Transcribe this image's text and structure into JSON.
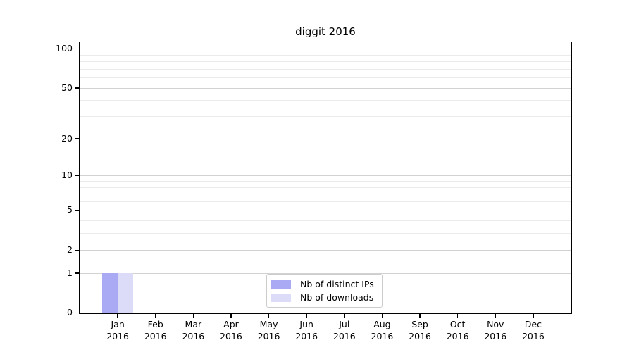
{
  "title": "diggit 2016",
  "chart_data": {
    "type": "bar",
    "title": "diggit 2016",
    "x_ticks": [
      {
        "month": "Jan",
        "year": "2016"
      },
      {
        "month": "Feb",
        "year": "2016"
      },
      {
        "month": "Mar",
        "year": "2016"
      },
      {
        "month": "Apr",
        "year": "2016"
      },
      {
        "month": "May",
        "year": "2016"
      },
      {
        "month": "Jun",
        "year": "2016"
      },
      {
        "month": "Jul",
        "year": "2016"
      },
      {
        "month": "Aug",
        "year": "2016"
      },
      {
        "month": "Sep",
        "year": "2016"
      },
      {
        "month": "Oct",
        "year": "2016"
      },
      {
        "month": "Nov",
        "year": "2016"
      },
      {
        "month": "Dec",
        "year": "2016"
      }
    ],
    "series": [
      {
        "name": "Nb of distinct IPs",
        "color": "#a9a9f4",
        "values": [
          1,
          0,
          0,
          0,
          0,
          0,
          0,
          0,
          0,
          0,
          0,
          0
        ]
      },
      {
        "name": "Nb of downloads",
        "color": "#dcdcf8",
        "values": [
          1,
          0,
          0,
          0,
          0,
          0,
          0,
          0,
          0,
          0,
          0,
          0
        ]
      }
    ],
    "y_axis": {
      "scale": "log1p",
      "max": 112,
      "major_ticks": [
        0,
        1,
        2,
        5,
        10,
        20,
        50,
        100
      ],
      "minor_gridlines": [
        3,
        4,
        6,
        7,
        8,
        9,
        30,
        40,
        60,
        70,
        80,
        90
      ]
    },
    "legend": {
      "position": "lower center",
      "entries": [
        "Nb of distinct IPs",
        "Nb of downloads"
      ]
    },
    "grid": true
  },
  "colors": {
    "background": "#ffffff",
    "axis": "#000000",
    "grid_major": "#d2d2d2",
    "grid_major_top": "#c0c0c0",
    "grid_minor": "#ebebeb",
    "legend_border": "#cccccc",
    "bar_distinct_ips": "#a9a9f4",
    "bar_downloads": "#dcdcf8"
  }
}
